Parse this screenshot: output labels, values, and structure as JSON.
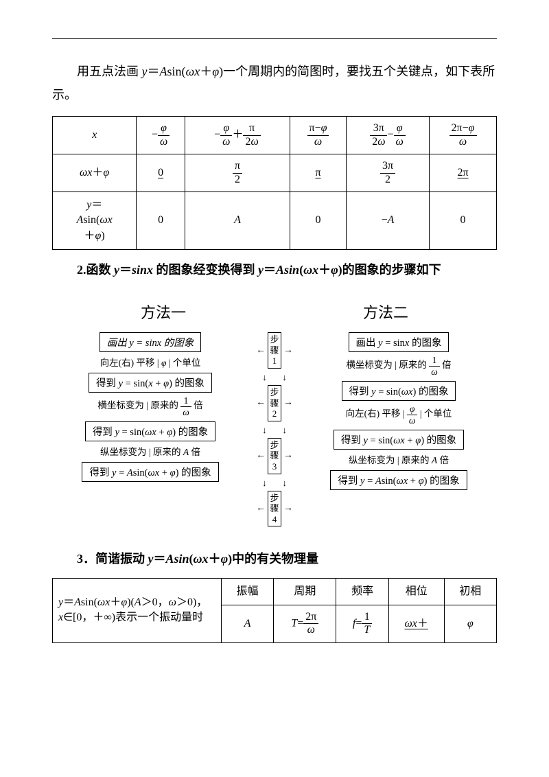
{
  "intro": "用五点法画 y＝Asin(ωx＋φ)一个周期内的简图时，要找五个关键点，如下表所示。",
  "table1": {
    "row_x": {
      "label_html": "<span class='it'>x</span>",
      "c1_html": "−<span class='frac'><span class='num'><span class='it'>φ</span></span><span class='den'><span class='it'>ω</span></span></span>",
      "c2_html": "−<span class='frac'><span class='num'><span class='it'>φ</span></span><span class='den'><span class='it'>ω</span></span></span>＋<span class='frac'><span class='num'>π</span><span class='den'>2<span class='it'>ω</span></span></span>",
      "c3_html": "<span class='frac'><span class='num'>π−<span class='it'>φ</span></span><span class='den'><span class='it'>ω</span></span></span>",
      "c4_html": "<span class='frac'><span class='num'>3π</span><span class='den'>2<span class='it'>ω</span></span></span>−<span class='frac'><span class='num'><span class='it'>φ</span></span><span class='den'><span class='it'>ω</span></span></span>",
      "c5_html": "<span class='frac'><span class='num'>2π−<span class='it'>φ</span></span><span class='den'><span class='it'>ω</span></span></span>"
    },
    "row_phase": {
      "label_html": "<span class='it'>ωx</span>＋<span class='it'>φ</span>",
      "c1_html": "<span class='u'>0</span>",
      "c2_html": "<span class='frac'><span class='num'>π</span><span class='den'>2</span></span>",
      "c3_html": "<span class='u'>π</span>",
      "c4_html": "<span class='frac'><span class='num'>3π</span><span class='den'>2</span></span>",
      "c5_html": "<span class='u'>2π</span>"
    },
    "row_y": {
      "label_html": "<span class='it'>y</span>＝<br><span class='it'>A</span>sin(<span class='it'>ωx</span><br>＋<span class='it'>φ</span>)",
      "c1": "0",
      "c2_html": "<span class='it'>A</span>",
      "c3": "0",
      "c4_html": "−<span class='it'>A</span>",
      "c5": "0"
    }
  },
  "heading2": "2.函数 y＝sinx 的图象经变换得到 y＝Asin(ωx＋φ)的图象的步骤如下",
  "methods": {
    "left": "方法一",
    "right": "方法二"
  },
  "flow": {
    "steps": [
      "步骤1",
      "步骤2",
      "步骤3",
      "步骤4"
    ],
    "L": {
      "b1": "画出 y = sinx 的图象",
      "c1_html": "向左(右) 平移 | <span class='it'>φ</span> | 个单位",
      "b2": "得到 y = sin(x + φ) 的图象",
      "c2_html": "横坐标变为 | 原来的 <span class='frac'><span class='num'>1</span><span class='den'><span class='it'>ω</span></span></span> 倍",
      "b3": "得到 y = sin(ωx + φ) 的图象",
      "c3_html": "纵坐标变为 | 原来的 <span class='it'>A</span> 倍",
      "b4": "得到 y = Asin(ωx + φ) 的图象"
    },
    "R": {
      "b1": "画出 y = sinx 的图象",
      "c1_html": "横坐标变为 | 原来的 <span class='frac'><span class='num'>1</span><span class='den'><span class='it'>ω</span></span></span> 倍",
      "b2": "得到 y = sin(ωx) 的图象",
      "c2_html": "向左(右) 平移 | <span class='frac'><span class='num'><span class='it'>φ</span></span><span class='den'><span class='it'>ω</span></span></span> | 个单位",
      "b3": "得到 y = sin(ωx + φ) 的图象",
      "c3_html": "纵坐标变为 | 原来的 <span class='it'>A</span> 倍",
      "b4": "得到 y = Asin(ωx + φ) 的图象"
    }
  },
  "heading3": "3．简谐振动 y＝Asin(ωx＋φ)中的有关物理量",
  "table2": {
    "left_top_html": "<span class='it'>y</span>＝<span class='it'>A</span>sin(<span class='it'>ωx</span>＋<span class='it'>φ</span>)(<span class='it'>A</span>＞0，<span class='it'>ω</span>＞0)，",
    "left_bottom_html": "<span class='it'>x</span>∈[0，＋∞)表示一个振动量时",
    "heads": [
      "振幅",
      "周期",
      "频率",
      "相位",
      "初相"
    ],
    "vals": {
      "A_html": "<span class='it'>A</span>",
      "T_html": "<span class='it'>T</span>=<span class='frac'><span class='num'>2π</span><span class='den'><span class='it'>ω</span></span></span>",
      "f_html": "<span class='it'>f</span>=<span class='frac'><span class='num'>1</span><span class='den'><span class='it'>T</span></span></span>",
      "phase_html": "<span class='u'><span class='it'>ωx</span>＋</span>",
      "phi_html": "<span class='it'>φ</span>"
    }
  },
  "colors": {
    "text": "#000000",
    "bg": "#ffffff",
    "border": "#000000"
  }
}
